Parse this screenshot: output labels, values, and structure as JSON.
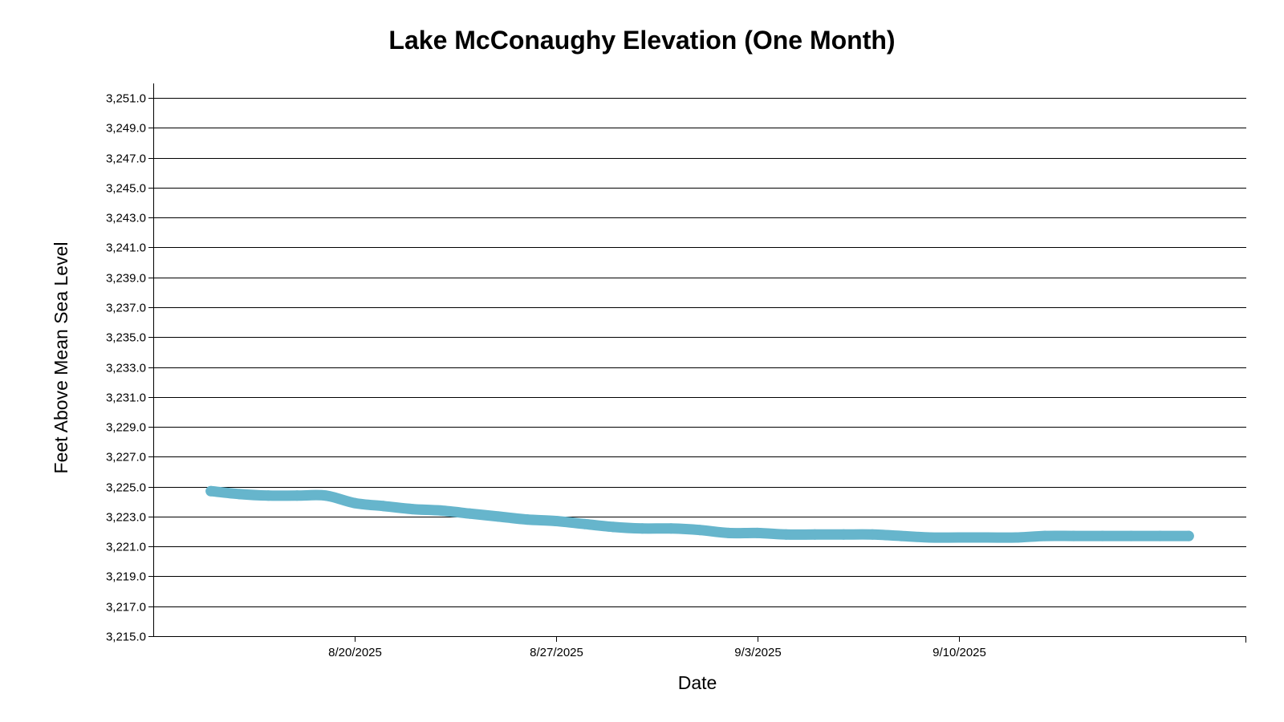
{
  "chart_data": {
    "type": "line",
    "title": "Lake McConaughy Elevation (One Month)",
    "xlabel": "Date",
    "ylabel": "Feet Above Mean Sea Level",
    "x_type": "date",
    "xlim": [
      "2025-08-13",
      "2025-09-20"
    ],
    "ylim": [
      3215.0,
      3252.0
    ],
    "y_ticks": [
      3215.0,
      3217.0,
      3219.0,
      3221.0,
      3223.0,
      3225.0,
      3227.0,
      3229.0,
      3231.0,
      3233.0,
      3235.0,
      3237.0,
      3239.0,
      3241.0,
      3243.0,
      3245.0,
      3247.0,
      3249.0,
      3251.0
    ],
    "y_tick_labels": [
      "3,215.0",
      "3,217.0",
      "3,219.0",
      "3,221.0",
      "3,223.0",
      "3,225.0",
      "3,227.0",
      "3,229.0",
      "3,231.0",
      "3,233.0",
      "3,235.0",
      "3,237.0",
      "3,239.0",
      "3,241.0",
      "3,243.0",
      "3,245.0",
      "3,247.0",
      "3,249.0",
      "3,251.0"
    ],
    "x_ticks": [
      "2025-08-20",
      "2025-08-27",
      "2025-09-03",
      "2025-09-10"
    ],
    "x_tick_labels": [
      "8/20/2025",
      "8/27/2025",
      "9/3/2025",
      "9/10/2025"
    ],
    "grid": "horizontal",
    "legend": "none",
    "series": [
      {
        "color": "#66b5cc",
        "x": [
          "2025-08-15",
          "2025-08-16",
          "2025-08-17",
          "2025-08-18",
          "2025-08-19",
          "2025-08-20",
          "2025-08-21",
          "2025-08-22",
          "2025-08-23",
          "2025-08-24",
          "2025-08-25",
          "2025-08-26",
          "2025-08-27",
          "2025-08-28",
          "2025-08-29",
          "2025-08-30",
          "2025-08-31",
          "2025-09-01",
          "2025-09-02",
          "2025-09-03",
          "2025-09-04",
          "2025-09-05",
          "2025-09-06",
          "2025-09-07",
          "2025-09-08",
          "2025-09-09",
          "2025-09-10",
          "2025-09-11",
          "2025-09-12",
          "2025-09-13",
          "2025-09-14",
          "2025-09-15",
          "2025-09-16",
          "2025-09-17",
          "2025-09-18"
        ],
        "y": [
          3224.7,
          3224.5,
          3224.4,
          3224.4,
          3224.4,
          3223.9,
          3223.7,
          3223.5,
          3223.4,
          3223.2,
          3223.0,
          3222.8,
          3222.7,
          3222.5,
          3222.3,
          3222.2,
          3222.2,
          3222.1,
          3221.9,
          3221.9,
          3221.8,
          3221.8,
          3221.8,
          3221.8,
          3221.7,
          3221.6,
          3221.6,
          3221.6,
          3221.6,
          3221.7,
          3221.7,
          3221.7,
          3221.7,
          3221.7,
          3221.7
        ]
      }
    ]
  }
}
